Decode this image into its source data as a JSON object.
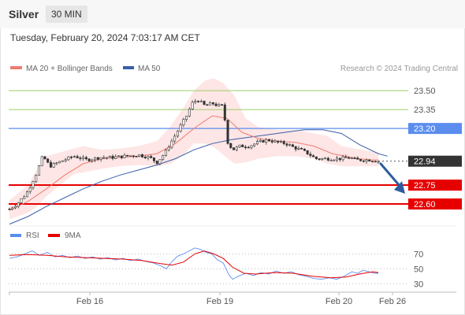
{
  "header": {
    "symbol": "Silver",
    "interval": "30 MIN",
    "timestamp": "Tuesday, February 20, 2024 7:03:17 AM CET"
  },
  "legend": {
    "ma20_label": "MA 20 + Bollinger Bands",
    "ma50_label": "MA 50",
    "credit": "Research © 2024 Trading Central"
  },
  "colors": {
    "ma20": "#ee7c72",
    "ma50": "#3a5ea8",
    "bollinger_fill": "#fde2e0",
    "resistance": "#9ccc6a",
    "pivot": "#5b8def",
    "support": "#e60000",
    "last": "#333333",
    "rsi": "#5b8def",
    "rsi_ma": "#e60000",
    "candle_up": "#ffffff",
    "candle_down": "#333333",
    "arrow": "#2e5c9e"
  },
  "chart_data": [
    {
      "type": "candlestick",
      "instrument": "Silver",
      "timeframe": "30 MIN",
      "x_ticks": [
        "Feb 16",
        "Feb 19",
        "Feb 20",
        "Feb 26"
      ],
      "ylim": [
        22.45,
        23.62
      ],
      "levels": [
        {
          "value": "23.50",
          "kind": "resistance"
        },
        {
          "value": "23.35",
          "kind": "resistance"
        },
        {
          "value": "23.20",
          "kind": "pivot"
        },
        {
          "value": "22.94",
          "kind": "last"
        },
        {
          "value": "22.75",
          "kind": "support"
        },
        {
          "value": "22.60",
          "kind": "support"
        }
      ],
      "close_path": [
        [
          0,
          22.56
        ],
        [
          8,
          22.6
        ],
        [
          18,
          22.68
        ],
        [
          28,
          22.82
        ],
        [
          36,
          22.98
        ],
        [
          44,
          22.9
        ],
        [
          56,
          22.94
        ],
        [
          70,
          22.98
        ],
        [
          84,
          22.95
        ],
        [
          98,
          22.97
        ],
        [
          112,
          22.97
        ],
        [
          126,
          22.98
        ],
        [
          140,
          22.99
        ],
        [
          152,
          22.97
        ],
        [
          160,
          22.93
        ],
        [
          168,
          23.0
        ],
        [
          176,
          23.1
        ],
        [
          184,
          23.2
        ],
        [
          192,
          23.3
        ],
        [
          198,
          23.4
        ],
        [
          204,
          23.43
        ],
        [
          212,
          23.38
        ],
        [
          220,
          23.4
        ],
        [
          226,
          23.38
        ],
        [
          232,
          23.38
        ],
        [
          236,
          23.1
        ],
        [
          242,
          23.03
        ],
        [
          250,
          23.06
        ],
        [
          260,
          23.06
        ],
        [
          270,
          23.09
        ],
        [
          280,
          23.11
        ],
        [
          290,
          23.09
        ],
        [
          300,
          23.08
        ],
        [
          308,
          23.05
        ],
        [
          316,
          23.03
        ],
        [
          324,
          23.0
        ],
        [
          332,
          22.96
        ],
        [
          340,
          22.96
        ],
        [
          350,
          22.96
        ],
        [
          360,
          22.96
        ],
        [
          368,
          22.97
        ],
        [
          376,
          22.95
        ],
        [
          384,
          22.95
        ],
        [
          392,
          22.95
        ],
        [
          400,
          22.94
        ]
      ],
      "ma20_path": [
        [
          0,
          22.55
        ],
        [
          20,
          22.62
        ],
        [
          40,
          22.72
        ],
        [
          60,
          22.83
        ],
        [
          80,
          22.92
        ],
        [
          100,
          22.96
        ],
        [
          120,
          22.97
        ],
        [
          140,
          22.98
        ],
        [
          160,
          23.0
        ],
        [
          180,
          23.08
        ],
        [
          200,
          23.2
        ],
        [
          220,
          23.3
        ],
        [
          236,
          23.28
        ],
        [
          252,
          23.17
        ],
        [
          270,
          23.12
        ],
        [
          290,
          23.1
        ],
        [
          310,
          23.09
        ],
        [
          330,
          23.06
        ],
        [
          350,
          23.0
        ],
        [
          370,
          22.97
        ],
        [
          390,
          22.95
        ],
        [
          400,
          22.95
        ]
      ],
      "ma50_path": [
        [
          0,
          22.44
        ],
        [
          20,
          22.5
        ],
        [
          40,
          22.58
        ],
        [
          60,
          22.65
        ],
        [
          80,
          22.72
        ],
        [
          100,
          22.78
        ],
        [
          120,
          22.83
        ],
        [
          140,
          22.87
        ],
        [
          160,
          22.91
        ],
        [
          180,
          22.96
        ],
        [
          200,
          23.03
        ],
        [
          220,
          23.08
        ],
        [
          240,
          23.11
        ],
        [
          260,
          23.13
        ],
        [
          280,
          23.15
        ],
        [
          300,
          23.17
        ],
        [
          320,
          23.19
        ],
        [
          340,
          23.19
        ],
        [
          360,
          23.16
        ],
        [
          380,
          23.07
        ],
        [
          400,
          23.0
        ],
        [
          410,
          22.98
        ]
      ],
      "bollinger_upper": [
        [
          0,
          22.63
        ],
        [
          20,
          22.75
        ],
        [
          30,
          22.88
        ],
        [
          40,
          22.98
        ],
        [
          60,
          23.02
        ],
        [
          80,
          23.06
        ],
        [
          100,
          23.03
        ],
        [
          120,
          23.04
        ],
        [
          140,
          23.06
        ],
        [
          160,
          23.1
        ],
        [
          175,
          23.22
        ],
        [
          190,
          23.38
        ],
        [
          200,
          23.5
        ],
        [
          212,
          23.58
        ],
        [
          222,
          23.6
        ],
        [
          232,
          23.56
        ],
        [
          244,
          23.46
        ],
        [
          256,
          23.28
        ],
        [
          270,
          23.21
        ],
        [
          290,
          23.19
        ],
        [
          310,
          23.19
        ],
        [
          330,
          23.16
        ],
        [
          345,
          23.14
        ],
        [
          360,
          23.06
        ],
        [
          375,
          23.04
        ],
        [
          390,
          23.02
        ],
        [
          400,
          23.01
        ]
      ],
      "bollinger_lower": [
        [
          0,
          22.48
        ],
        [
          20,
          22.53
        ],
        [
          30,
          22.58
        ],
        [
          40,
          22.66
        ],
        [
          55,
          22.75
        ],
        [
          70,
          22.84
        ],
        [
          80,
          22.85
        ],
        [
          100,
          22.88
        ],
        [
          120,
          22.9
        ],
        [
          140,
          22.91
        ],
        [
          160,
          22.9
        ],
        [
          175,
          22.92
        ],
        [
          190,
          23.0
        ],
        [
          200,
          23.08
        ],
        [
          212,
          23.08
        ],
        [
          222,
          23.05
        ],
        [
          232,
          22.99
        ],
        [
          244,
          22.92
        ],
        [
          256,
          22.93
        ],
        [
          270,
          22.96
        ],
        [
          290,
          22.98
        ],
        [
          310,
          22.98
        ],
        [
          330,
          22.96
        ],
        [
          345,
          22.92
        ],
        [
          360,
          22.9
        ],
        [
          375,
          22.9
        ],
        [
          390,
          22.9
        ],
        [
          400,
          22.9
        ]
      ],
      "arrow_target": 22.7
    },
    {
      "type": "line",
      "series": [
        {
          "name": "RSI",
          "values": [
            [
              0,
              64
            ],
            [
              8,
              66
            ],
            [
              16,
              70
            ],
            [
              24,
              74
            ],
            [
              32,
              68
            ],
            [
              40,
              72
            ],
            [
              48,
              66
            ],
            [
              56,
              68
            ],
            [
              64,
              65
            ],
            [
              72,
              67
            ],
            [
              80,
              64
            ],
            [
              88,
              66
            ],
            [
              96,
              63
            ],
            [
              104,
              65
            ],
            [
              112,
              62
            ],
            [
              120,
              64
            ],
            [
              128,
              61
            ],
            [
              136,
              63
            ],
            [
              144,
              60
            ],
            [
              152,
              58
            ],
            [
              160,
              54
            ],
            [
              166,
              50
            ],
            [
              172,
              60
            ],
            [
              178,
              67
            ],
            [
              184,
              70
            ],
            [
              190,
              74
            ],
            [
              196,
              78
            ],
            [
              202,
              76
            ],
            [
              208,
              72
            ],
            [
              214,
              70
            ],
            [
              220,
              62
            ],
            [
              226,
              58
            ],
            [
              232,
              42
            ],
            [
              236,
              36
            ],
            [
              242,
              40
            ],
            [
              250,
              44
            ],
            [
              258,
              41
            ],
            [
              266,
              45
            ],
            [
              274,
              43
            ],
            [
              282,
              47
            ],
            [
              290,
              44
            ],
            [
              298,
              46
            ],
            [
              306,
              42
            ],
            [
              314,
              40
            ],
            [
              322,
              37
            ],
            [
              330,
              36
            ],
            [
              338,
              38
            ],
            [
              346,
              36
            ],
            [
              354,
              40
            ],
            [
              362,
              46
            ],
            [
              368,
              44
            ],
            [
              374,
              48
            ],
            [
              380,
              46
            ],
            [
              386,
              44
            ],
            [
              390,
              44
            ]
          ]
        },
        {
          "name": "9MA",
          "values": [
            [
              0,
              68
            ],
            [
              20,
              69
            ],
            [
              40,
              68
            ],
            [
              60,
              66
            ],
            [
              80,
              65
            ],
            [
              100,
              64
            ],
            [
              120,
              63
            ],
            [
              140,
              61
            ],
            [
              160,
              57
            ],
            [
              172,
              55
            ],
            [
              184,
              59
            ],
            [
              196,
              70
            ],
            [
              206,
              74
            ],
            [
              216,
              70
            ],
            [
              226,
              64
            ],
            [
              236,
              52
            ],
            [
              248,
              44
            ],
            [
              260,
              43
            ],
            [
              280,
              45
            ],
            [
              300,
              44
            ],
            [
              320,
              40
            ],
            [
              340,
              38
            ],
            [
              356,
              39
            ],
            [
              370,
              43
            ],
            [
              384,
              46
            ],
            [
              390,
              45
            ]
          ]
        }
      ],
      "ylim": [
        24,
        82
      ],
      "y_ticks": [
        {
          "value": 70,
          "label": "70"
        },
        {
          "value": 50,
          "label": "50"
        },
        {
          "value": 30,
          "label": "30"
        }
      ]
    }
  ]
}
